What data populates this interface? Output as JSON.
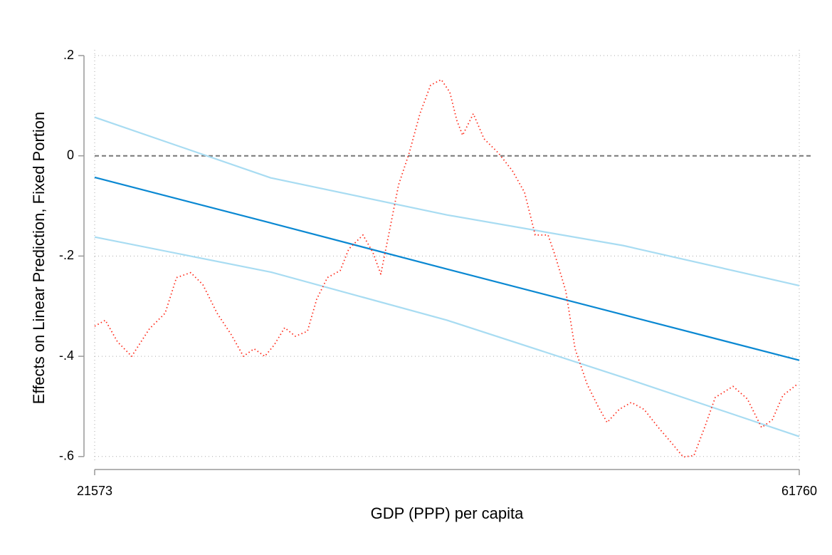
{
  "chart_data": {
    "type": "line",
    "xlabel": "GDP (PPP) per capita",
    "ylabel": "Effects on Linear Prediction, Fixed Portion",
    "xlim": [
      21573,
      61760
    ],
    "ylim": [
      -0.615,
      0.205
    ],
    "xticks": [
      21573,
      61760
    ],
    "yticks": [
      {
        "value": 0.2,
        "label": ".2"
      },
      0,
      {
        "value": -0.2,
        "label": "-.2"
      },
      {
        "value": -0.4,
        "label": "-.4"
      },
      {
        "value": -0.6,
        "label": "-.6"
      }
    ],
    "grid": true,
    "hline": 0,
    "series": [
      {
        "color": "#0a88d2",
        "style": "solid",
        "x": [
          21573,
          31620,
          41667,
          51713,
          61760
        ],
        "values": [
          -0.043,
          -0.134,
          -0.226,
          -0.317,
          -0.408
        ]
      },
      {
        "color": "#a8dcf2",
        "style": "solid",
        "x": [
          21573,
          31620,
          41667,
          51713,
          61760
        ],
        "values": [
          0.077,
          -0.044,
          -0.118,
          -0.179,
          -0.259
        ]
      },
      {
        "color": "#a8dcf2",
        "style": "solid",
        "x": [
          21573,
          31620,
          41667,
          51713,
          61760
        ],
        "values": [
          -0.162,
          -0.232,
          -0.328,
          -0.442,
          -0.56
        ]
      },
      {
        "color": "#ff2a1a",
        "style": "dotted",
        "x": [
          21573,
          22182,
          22872,
          23684,
          24699,
          25592,
          26241,
          27053,
          27743,
          28555,
          29367,
          30057,
          30666,
          31275,
          31802,
          32411,
          33020,
          33710,
          34238,
          34847,
          35578,
          36065,
          36877,
          37445,
          37892,
          38419,
          38907,
          39516,
          40125,
          40733,
          41342,
          41829,
          42235,
          42560,
          43169,
          43778,
          44590,
          45402,
          46092,
          46700,
          47431,
          47837,
          48445,
          48973,
          49663,
          50272,
          50800,
          51490,
          52180,
          52911,
          53722,
          54412,
          55143,
          55752,
          56361,
          56970,
          57985,
          58797,
          59609,
          60218,
          60827,
          61639
        ],
        "values": [
          -0.34,
          -0.328,
          -0.371,
          -0.4,
          -0.345,
          -0.314,
          -0.243,
          -0.233,
          -0.257,
          -0.314,
          -0.357,
          -0.4,
          -0.385,
          -0.4,
          -0.378,
          -0.343,
          -0.36,
          -0.35,
          -0.286,
          -0.243,
          -0.229,
          -0.186,
          -0.158,
          -0.193,
          -0.236,
          -0.144,
          -0.058,
          0.006,
          0.084,
          0.141,
          0.152,
          0.127,
          0.07,
          0.041,
          0.084,
          0.034,
          0.006,
          -0.03,
          -0.073,
          -0.158,
          -0.158,
          -0.199,
          -0.27,
          -0.385,
          -0.456,
          -0.499,
          -0.532,
          -0.506,
          -0.492,
          -0.506,
          -0.542,
          -0.57,
          -0.601,
          -0.598,
          -0.542,
          -0.482,
          -0.46,
          -0.485,
          -0.542,
          -0.527,
          -0.478,
          -0.456
        ]
      }
    ]
  }
}
